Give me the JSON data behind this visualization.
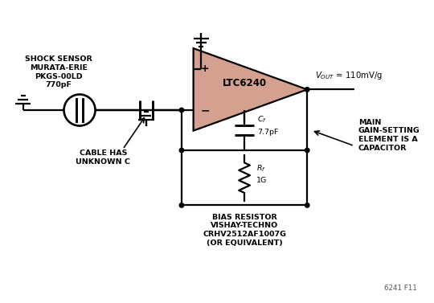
{
  "fig_width": 5.4,
  "fig_height": 3.77,
  "dpi": 100,
  "bg_color": "#ffffff",
  "opamp_fill": "#d4a090",
  "opamp_stroke": "#000000",
  "line_color": "#000000",
  "label_fontsize": 6.8,
  "figure_label": "6241 F11",
  "vout_text": "$V_{OUT}$ = 110mV/g",
  "cf_text": "$C_f$",
  "cf_val": "7.7pF",
  "rf_text": "$R_f$",
  "rf_val": "1G",
  "opamp_label": "LTC6240",
  "sensor_lines": [
    "SHOCK SENSOR",
    "MURATA-ERIE",
    "PKGS-00LD",
    "770pF"
  ],
  "cable_lines": [
    "CABLE HAS",
    "UNKNOWN C"
  ],
  "bias_lines": [
    "BIAS RESISTOR",
    "VISHAY-TECHNO",
    "CRHV2512AF1007G",
    "(OR EQUIVALENT)"
  ],
  "main_lines": [
    "MAIN",
    "GAIN-SETTING",
    "ELEMENT IS A",
    "CAPACITOR"
  ],
  "plus_sym": "+",
  "minus_sym": "−"
}
